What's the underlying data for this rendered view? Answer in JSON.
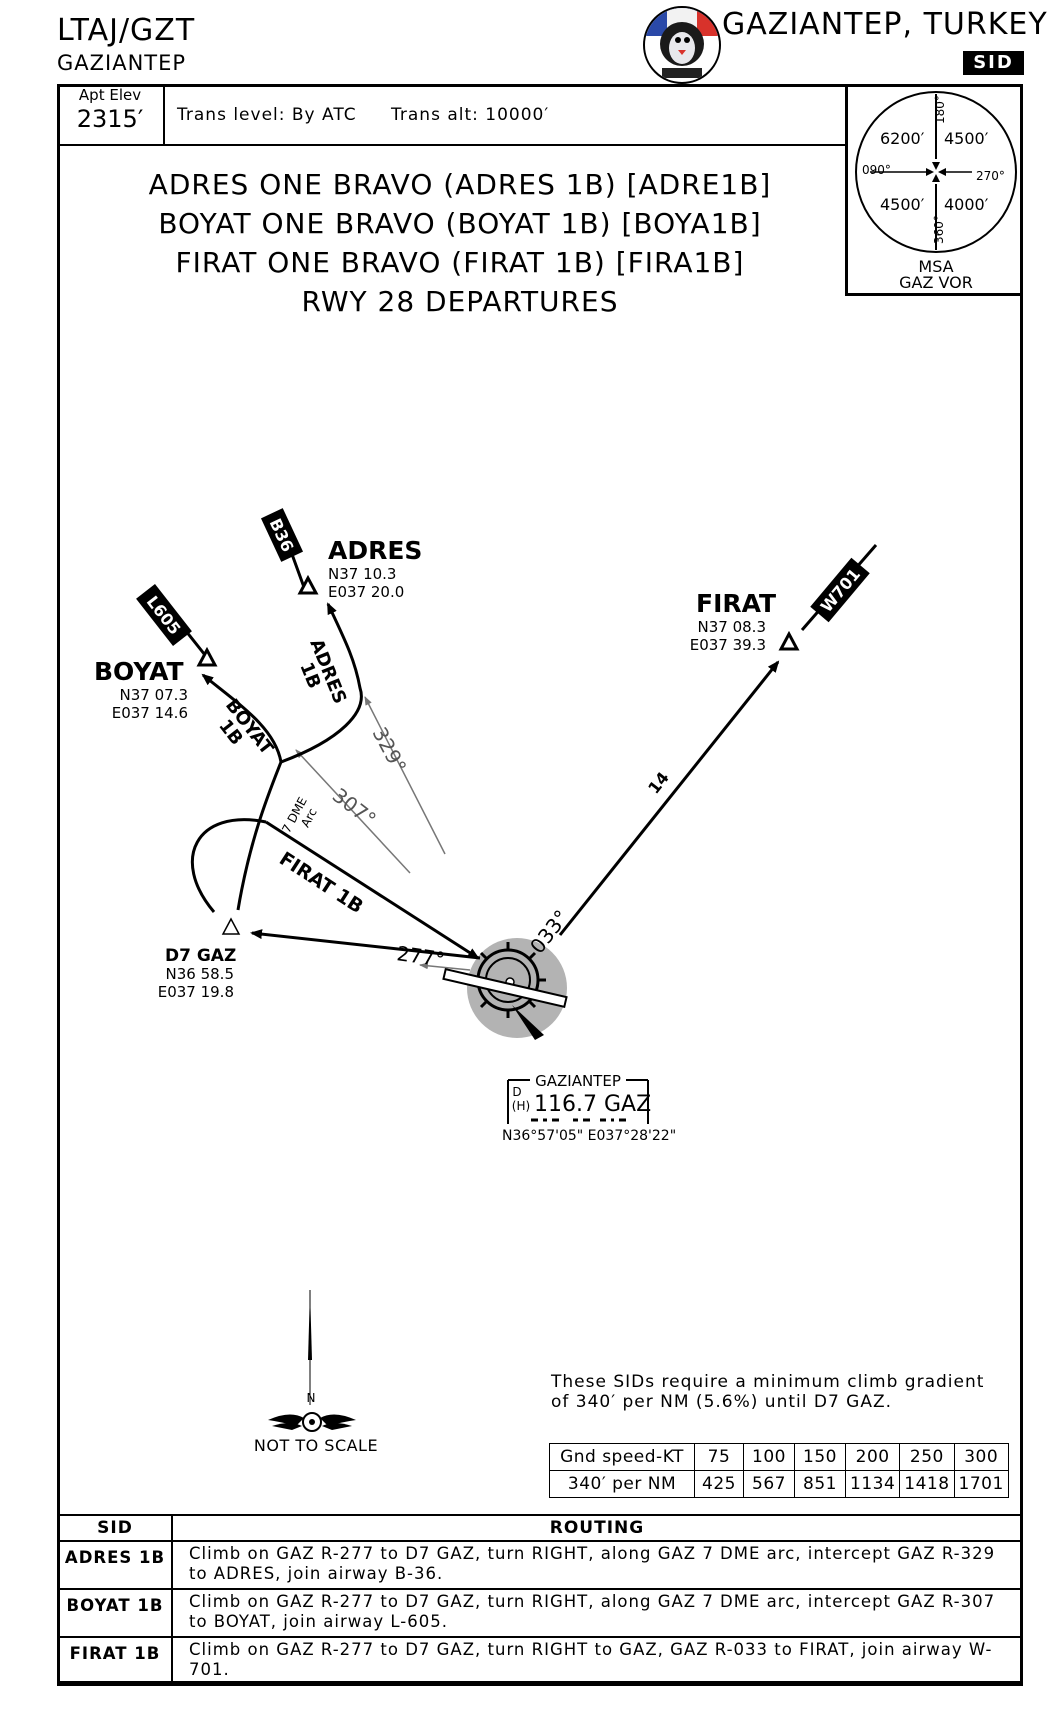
{
  "header": {
    "airport_id": "LTAJ/GZT",
    "airport_name": "GAZIANTEP",
    "city_title": "GAZIANTEP, TURKEY",
    "chart_type_badge": "SID",
    "logo_text": "LTAJ/GZT"
  },
  "info_row": {
    "apt_elev_label": "Apt Elev",
    "apt_elev_value": "2315′",
    "trans_level": "Trans level: By ATC",
    "trans_alt": "Trans alt: 10000′"
  },
  "msa": {
    "nw": "6200′",
    "ne": "4500′",
    "sw": "4500′",
    "se": "4000′",
    "b180": "180°",
    "b090": "090°",
    "b270": "270°",
    "b360": "360°",
    "label1": "MSA",
    "label2": "GAZ VOR"
  },
  "titles": [
    {
      "name": "ADRES ONE BRAVO (ADRES 1B)",
      "code": "[ADRE1B]"
    },
    {
      "name": "BOYAT ONE BRAVO (BOYAT 1B)",
      "code": "[BOYA1B]"
    },
    {
      "name": "FIRAT ONE BRAVO (FIRAT 1B)",
      "code": "[FIRA1B]"
    }
  ],
  "runway_title": "RWY 28 DEPARTURES",
  "waypoints": {
    "adres": {
      "name": "ADRES",
      "lat": "N37  10.3",
      "lon": "E037  20.0"
    },
    "boyat": {
      "name": "BOYAT",
      "lat": "N37  07.3",
      "lon": "E037  14.6"
    },
    "firat": {
      "name": "FIRAT",
      "lat": "N37  08.3",
      "lon": "E037  39.3"
    },
    "d7gaz": {
      "name": "D7 GAZ",
      "lat": "N36  58.5",
      "lon": "E037  19.8"
    }
  },
  "airways": {
    "b36": "B36",
    "l605": "L605",
    "w701": "W701"
  },
  "route_labels": {
    "adres": "ADRES",
    "adres_suffix": "1B",
    "boyat": "BOYAT",
    "boyat_suffix": "1B",
    "firat": "FIRAT 1B",
    "arc1": "7 DME",
    "arc2": "Arc",
    "r329": "329°",
    "r307": "307°",
    "r277": "277°",
    "r033": "033°",
    "dist14": "14"
  },
  "navaid": {
    "name": "GAZIANTEP",
    "class_d": "D",
    "class_h": "(H)",
    "freq_ident": "116.7  GAZ",
    "coords": "N36°57'05\"  E037°28'22\""
  },
  "north_label": "N",
  "not_to_scale": "NOT TO SCALE",
  "requirement": "These SIDs require a minimum climb gradient of 340′ per NM (5.6%) until D7 GAZ.",
  "gradient_table": {
    "row1_header": "Gnd speed-KT",
    "speeds": [
      "75",
      "100",
      "150",
      "200",
      "250",
      "300"
    ],
    "row2_header": "340′ per NM",
    "values": [
      "425",
      "567",
      "851",
      "1134",
      "1418",
      "1701"
    ]
  },
  "routing_table": {
    "col_sid": "SID",
    "col_routing": "ROUTING",
    "rows": [
      {
        "sid": "ADRES 1B",
        "routing": "Climb on GAZ R-277 to D7 GAZ, turn RIGHT, along GAZ 7 DME arc, intercept GAZ R-329 to ADRES, join airway B-36."
      },
      {
        "sid": "BOYAT 1B",
        "routing": "Climb on GAZ R-277 to D7 GAZ, turn RIGHT, along GAZ 7 DME arc, intercept GAZ R-307 to BOYAT, join airway L-605."
      },
      {
        "sid": "FIRAT 1B",
        "routing": "Climb on GAZ R-277 to D7 GAZ, turn RIGHT to GAZ, GAZ R-033 to FIRAT, join airway W-701."
      }
    ]
  },
  "colors": {
    "ink": "#000000",
    "vor_halo": "#b3b3b3",
    "guide_line": "#777777"
  }
}
